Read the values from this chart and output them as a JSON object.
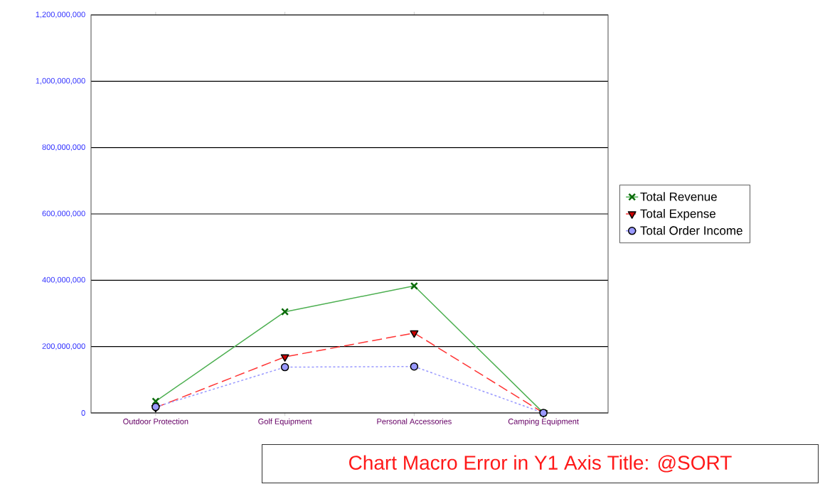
{
  "chart_data": {
    "type": "line",
    "categories": [
      "Outdoor Protection",
      "Golf Equipment",
      "Personal Accessories",
      "Camping Equipment"
    ],
    "series": [
      {
        "name": "Total Revenue",
        "color": "#4caf50",
        "marker": "cross",
        "line_style": "solid",
        "values": [
          35000000,
          305000000,
          383000000,
          0
        ]
      },
      {
        "name": "Total Expense",
        "color": "#ff3333",
        "marker": "triangle",
        "line_style": "dashed",
        "values": [
          16000000,
          169000000,
          241000000,
          0
        ]
      },
      {
        "name": "Total Order Income",
        "color": "#9999ff",
        "marker": "circle",
        "line_style": "dotted",
        "values": [
          18000000,
          138000000,
          140000000,
          0
        ]
      }
    ],
    "ylim": [
      0,
      1200000000
    ],
    "yticks": [
      0,
      {
        "value": 200000000,
        "label": "200,000,000"
      },
      {
        "value": 400000000,
        "label": "400,000,000"
      },
      {
        "value": 600000000,
        "label": "600,000,000"
      },
      {
        "value": 800000000,
        "label": "800,000,000"
      },
      {
        "value": 1000000000,
        "label": "1,000,000,000"
      },
      {
        "value": 1200000000,
        "label": "1,200,000,000"
      }
    ],
    "grid": "y",
    "legend": "right",
    "annotations": [
      "Chart Macro Error in Y1 Axis Title: @SORT"
    ]
  }
}
